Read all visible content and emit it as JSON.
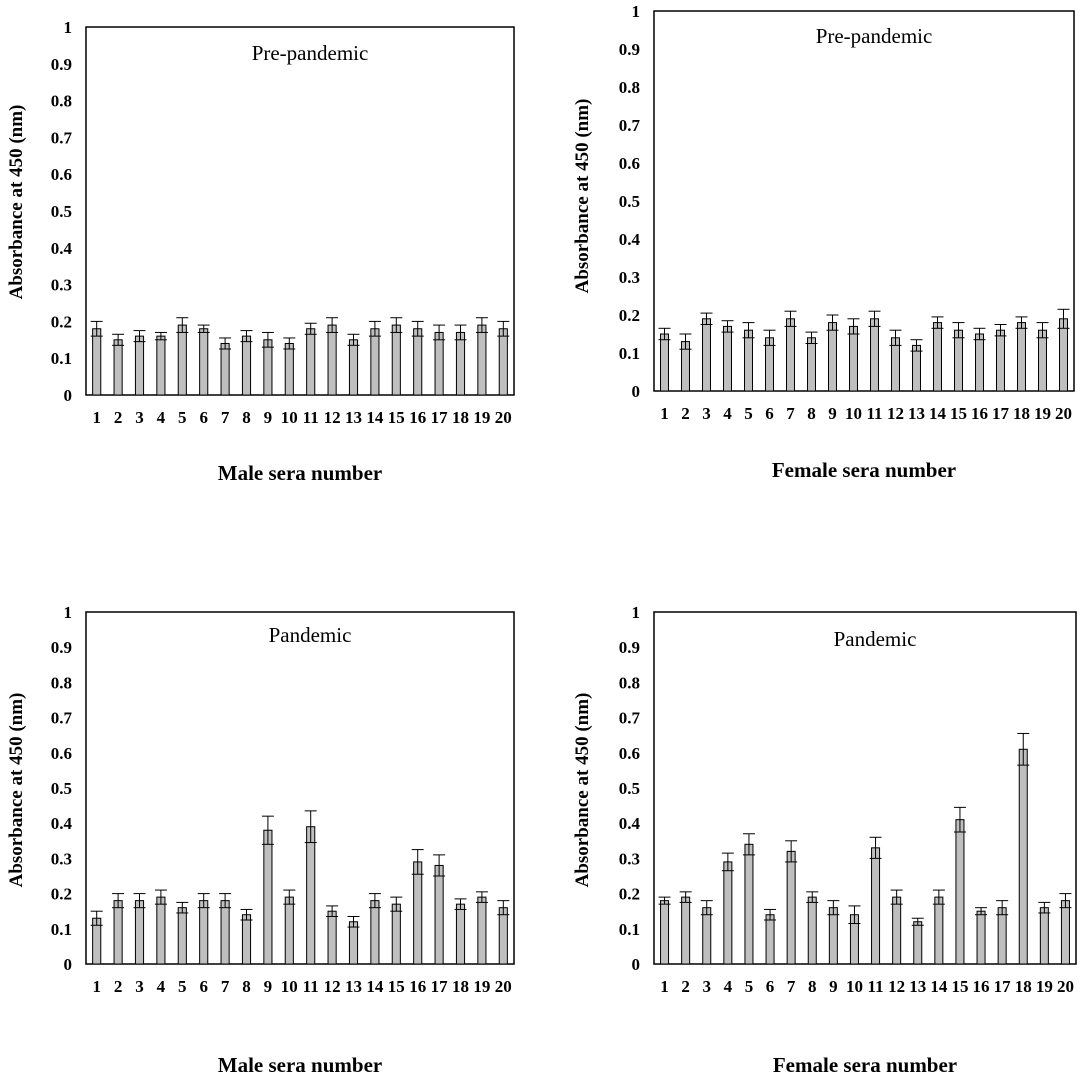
{
  "chart_data": [
    {
      "type": "bar",
      "title": "Pre-pandemic",
      "xlabel": "Male sera number",
      "ylabel": "Absorbance at 450 (nm)",
      "ylim": [
        0,
        1
      ],
      "yticks": [
        "0",
        "0.1",
        "0.2",
        "0.3",
        "0.4",
        "0.5",
        "0.6",
        "0.7",
        "0.8",
        "0.9",
        "1"
      ],
      "categories": [
        "1",
        "2",
        "3",
        "4",
        "5",
        "6",
        "7",
        "8",
        "9",
        "10",
        "11",
        "12",
        "13",
        "14",
        "15",
        "16",
        "17",
        "18",
        "19",
        "20"
      ],
      "values": [
        0.18,
        0.15,
        0.16,
        0.16,
        0.19,
        0.18,
        0.14,
        0.16,
        0.15,
        0.14,
        0.18,
        0.19,
        0.15,
        0.18,
        0.19,
        0.18,
        0.17,
        0.17,
        0.19,
        0.18
      ],
      "errors": [
        0.02,
        0.015,
        0.015,
        0.01,
        0.02,
        0.01,
        0.015,
        0.015,
        0.02,
        0.015,
        0.015,
        0.02,
        0.015,
        0.02,
        0.02,
        0.02,
        0.02,
        0.02,
        0.02,
        0.02
      ],
      "color": "#bfbfbf",
      "grid": false
    },
    {
      "type": "bar",
      "title": "Pre-pandemic",
      "xlabel": "Female sera number",
      "ylabel": "Absorbance at 450 (nm)",
      "ylim": [
        0,
        1
      ],
      "yticks": [
        "0",
        "0.1",
        "0.2",
        "0.3",
        "0.4",
        "0.5",
        "0.6",
        "0.7",
        "0.8",
        "0.9",
        "1"
      ],
      "categories": [
        "1",
        "2",
        "3",
        "4",
        "5",
        "6",
        "7",
        "8",
        "9",
        "10",
        "11",
        "12",
        "13",
        "14",
        "15",
        "16",
        "17",
        "18",
        "19",
        "20"
      ],
      "values": [
        0.15,
        0.13,
        0.19,
        0.17,
        0.16,
        0.14,
        0.19,
        0.14,
        0.18,
        0.17,
        0.19,
        0.14,
        0.12,
        0.18,
        0.16,
        0.15,
        0.16,
        0.18,
        0.16,
        0.19
      ],
      "errors": [
        0.015,
        0.02,
        0.015,
        0.015,
        0.02,
        0.02,
        0.02,
        0.015,
        0.02,
        0.02,
        0.02,
        0.02,
        0.015,
        0.015,
        0.02,
        0.015,
        0.015,
        0.015,
        0.02,
        0.025
      ],
      "color": "#bfbfbf",
      "grid": false
    },
    {
      "type": "bar",
      "title": "Pandemic",
      "xlabel": "Male sera number",
      "ylabel": "Absorbance at 450 (nm)",
      "ylim": [
        0,
        1
      ],
      "yticks": [
        "0",
        "0.1",
        "0.2",
        "0.3",
        "0.4",
        "0.5",
        "0.6",
        "0.7",
        "0.8",
        "0.9",
        "1"
      ],
      "categories": [
        "1",
        "2",
        "3",
        "4",
        "5",
        "6",
        "7",
        "8",
        "9",
        "10",
        "11",
        "12",
        "13",
        "14",
        "15",
        "16",
        "17",
        "18",
        "19",
        "20"
      ],
      "values": [
        0.13,
        0.18,
        0.18,
        0.19,
        0.16,
        0.18,
        0.18,
        0.14,
        0.38,
        0.19,
        0.39,
        0.15,
        0.12,
        0.18,
        0.17,
        0.29,
        0.28,
        0.17,
        0.19,
        0.16
      ],
      "errors": [
        0.02,
        0.02,
        0.02,
        0.02,
        0.015,
        0.02,
        0.02,
        0.015,
        0.04,
        0.02,
        0.045,
        0.015,
        0.015,
        0.02,
        0.02,
        0.035,
        0.03,
        0.015,
        0.015,
        0.02
      ],
      "color": "#bfbfbf",
      "grid": false
    },
    {
      "type": "bar",
      "title": "Pandemic",
      "xlabel": "Female sera number",
      "ylabel": "Absorbance at 450 (nm)",
      "ylim": [
        0,
        1
      ],
      "yticks": [
        "0",
        "0.1",
        "0.2",
        "0.3",
        "0.4",
        "0.5",
        "0.6",
        "0.7",
        "0.8",
        "0.9",
        "1"
      ],
      "categories": [
        "1",
        "2",
        "3",
        "4",
        "5",
        "6",
        "7",
        "8",
        "9",
        "10",
        "11",
        "12",
        "13",
        "14",
        "15",
        "16",
        "17",
        "18",
        "19",
        "20"
      ],
      "values": [
        0.18,
        0.19,
        0.16,
        0.29,
        0.34,
        0.14,
        0.32,
        0.19,
        0.16,
        0.14,
        0.33,
        0.19,
        0.12,
        0.19,
        0.41,
        0.15,
        0.16,
        0.61,
        0.16,
        0.18
      ],
      "errors": [
        0.01,
        0.015,
        0.02,
        0.025,
        0.03,
        0.015,
        0.03,
        0.015,
        0.02,
        0.025,
        0.03,
        0.02,
        0.01,
        0.02,
        0.035,
        0.01,
        0.02,
        0.045,
        0.015,
        0.02
      ],
      "color": "#bfbfbf",
      "grid": false
    }
  ]
}
